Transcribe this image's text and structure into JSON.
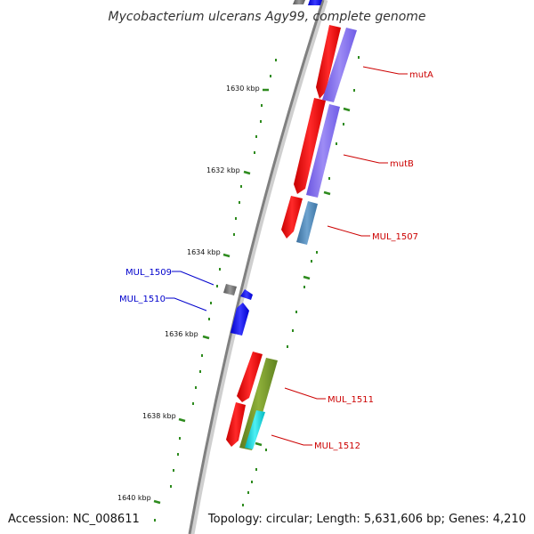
{
  "title": "Mycobacterium ulcerans Agy99, complete genome",
  "footer": {
    "accession": "Accession: NC_008611",
    "stats": "Topology: circular; Length: 5,631,606 bp; Genes: 4,210"
  },
  "scale_labels": [
    "1630 kbp",
    "1632 kbp",
    "1634 kbp",
    "1636 kbp",
    "1638 kbp",
    "1640 kbp"
  ],
  "colors": {
    "backbone": "#808080",
    "tick": "#2e8b1e",
    "forward_gene": "#ff0000",
    "reverse_gene": "#0000ff",
    "gray_gene": "#707070",
    "purple_feature": "#7b68ee",
    "steelblue_feature": "#4682b4",
    "olive_feature": "#6b8e23",
    "cyan_feature": "#00ced1",
    "label_forward": "#cc0000",
    "label_reverse": "#0000cc"
  },
  "gene_labels": [
    {
      "text": "mutA",
      "strand": "forward"
    },
    {
      "text": "mutB",
      "strand": "forward"
    },
    {
      "text": "MUL_1507",
      "strand": "forward"
    },
    {
      "text": "MUL_1509",
      "strand": "reverse"
    },
    {
      "text": "MUL_1510",
      "strand": "reverse"
    },
    {
      "text": "MUL_1511",
      "strand": "forward"
    },
    {
      "text": "MUL_1512",
      "strand": "forward"
    }
  ]
}
